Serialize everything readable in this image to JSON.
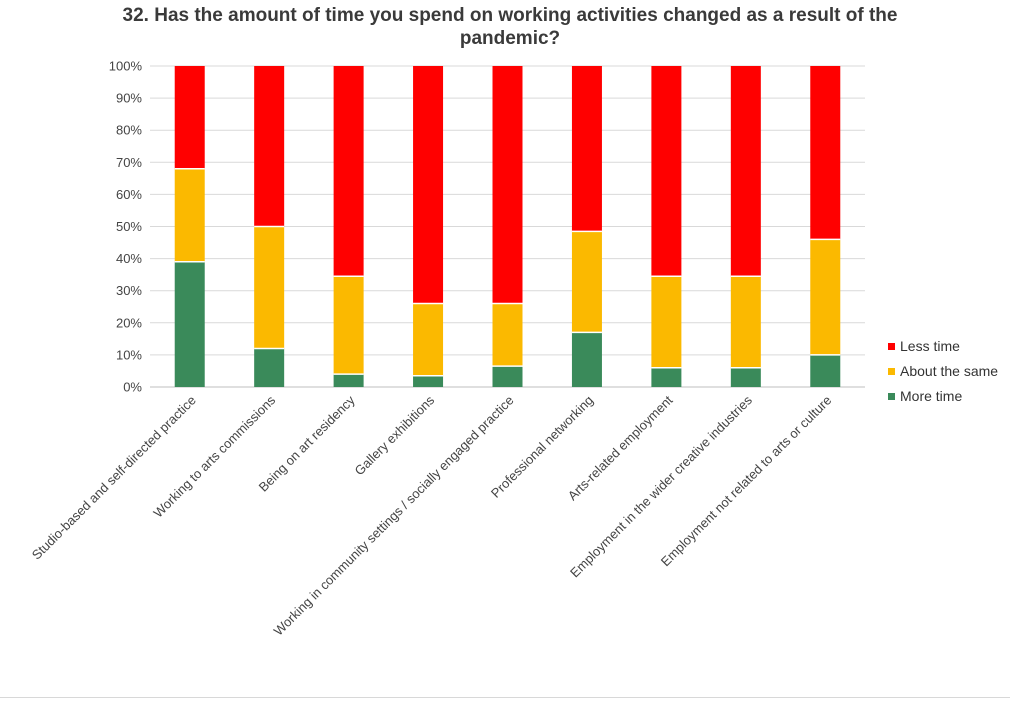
{
  "chart_data": {
    "type": "bar",
    "stacked": true,
    "title": "32. Has the amount of time you spend on working activities changed as a result of the pandemic?",
    "ylim": [
      0,
      100
    ],
    "yticks": [
      "0%",
      "10%",
      "20%",
      "30%",
      "40%",
      "50%",
      "60%",
      "70%",
      "80%",
      "90%",
      "100%"
    ],
    "grid": true,
    "legend_position": "right",
    "categories": [
      "Studio-based and self-directed practice",
      "Working to arts commissions",
      "Being on art residency",
      "Gallery exhibitions",
      "Working in community settings / socially engaged practice",
      "Professional networking",
      "Arts-related employment",
      "Employment in the wider creative industries",
      "Employment not related to arts or culture"
    ],
    "series": [
      {
        "name": "More time",
        "color": "#3a8a5a",
        "values": [
          39,
          12,
          4,
          3.5,
          6.5,
          17,
          6,
          6,
          10
        ]
      },
      {
        "name": "About the same",
        "color": "#fbb900",
        "values": [
          29,
          38,
          30.5,
          22.5,
          19.5,
          31.5,
          28.5,
          28.5,
          36
        ]
      },
      {
        "name": "Less time",
        "color": "#ff0000",
        "values": [
          32,
          50,
          65.5,
          74,
          74,
          51.5,
          65.5,
          65.5,
          54
        ]
      }
    ],
    "legend": [
      "Less time",
      "About the same",
      "More time"
    ]
  }
}
